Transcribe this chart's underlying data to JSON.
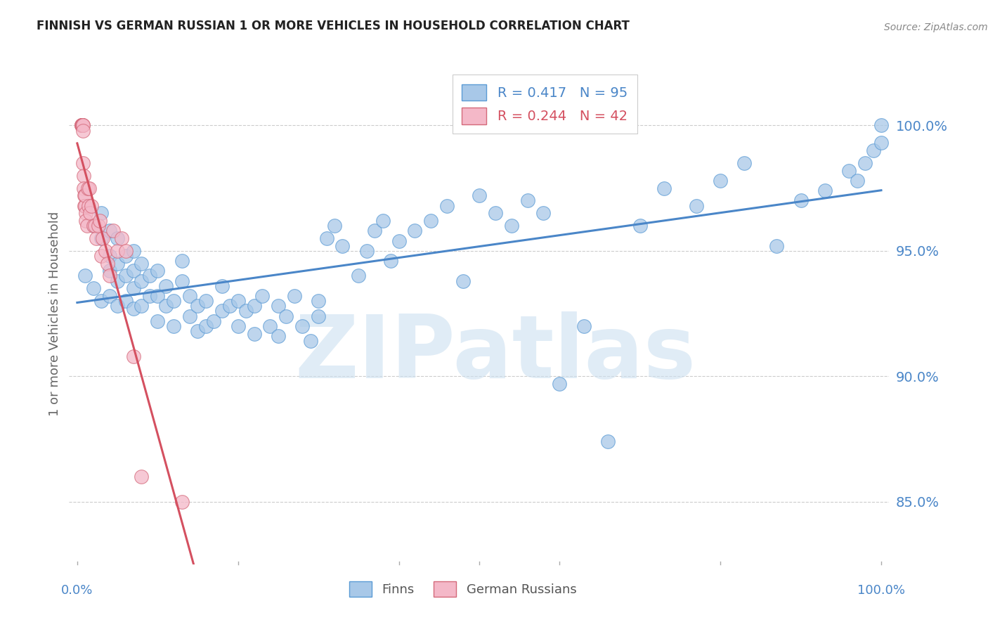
{
  "title": "FINNISH VS GERMAN RUSSIAN 1 OR MORE VEHICLES IN HOUSEHOLD CORRELATION CHART",
  "source": "Source: ZipAtlas.com",
  "ylabel": "1 or more Vehicles in Household",
  "watermark": "ZIPatlas",
  "finns_R": 0.417,
  "finns_N": 95,
  "german_russians_R": 0.244,
  "german_russians_N": 42,
  "finns_color": "#a8c8e8",
  "finns_edge": "#5b9bd5",
  "german_russians_color": "#f4b8c8",
  "german_russians_edge": "#d4697a",
  "trendline_finns_color": "#4a86c8",
  "trendline_german_color": "#d45060",
  "ylim_min": 0.825,
  "ylim_max": 1.025,
  "xlim_min": -0.01,
  "xlim_max": 1.01,
  "yticks": [
    0.85,
    0.9,
    0.95,
    1.0
  ],
  "ytick_labels": [
    "85.0%",
    "90.0%",
    "95.0%",
    "100.0%"
  ],
  "grid_color": "#cccccc",
  "background_color": "#ffffff",
  "finns_x": [
    0.01,
    0.02,
    0.02,
    0.03,
    0.03,
    0.03,
    0.04,
    0.04,
    0.04,
    0.04,
    0.05,
    0.05,
    0.05,
    0.05,
    0.06,
    0.06,
    0.06,
    0.07,
    0.07,
    0.07,
    0.07,
    0.08,
    0.08,
    0.08,
    0.09,
    0.09,
    0.1,
    0.1,
    0.1,
    0.11,
    0.11,
    0.12,
    0.12,
    0.13,
    0.13,
    0.14,
    0.14,
    0.15,
    0.15,
    0.16,
    0.16,
    0.17,
    0.18,
    0.18,
    0.19,
    0.2,
    0.2,
    0.21,
    0.22,
    0.22,
    0.23,
    0.24,
    0.25,
    0.25,
    0.26,
    0.27,
    0.28,
    0.29,
    0.3,
    0.3,
    0.31,
    0.32,
    0.33,
    0.35,
    0.36,
    0.37,
    0.38,
    0.39,
    0.4,
    0.42,
    0.44,
    0.46,
    0.48,
    0.5,
    0.52,
    0.54,
    0.56,
    0.58,
    0.6,
    0.63,
    0.66,
    0.7,
    0.73,
    0.77,
    0.8,
    0.83,
    0.87,
    0.9,
    0.93,
    0.96,
    0.97,
    0.98,
    0.99,
    1.0,
    1.0
  ],
  "finns_y": [
    0.94,
    0.935,
    0.96,
    0.93,
    0.955,
    0.965,
    0.932,
    0.942,
    0.948,
    0.958,
    0.928,
    0.938,
    0.945,
    0.955,
    0.93,
    0.94,
    0.948,
    0.927,
    0.935,
    0.942,
    0.95,
    0.928,
    0.938,
    0.945,
    0.932,
    0.94,
    0.922,
    0.932,
    0.942,
    0.928,
    0.936,
    0.92,
    0.93,
    0.938,
    0.946,
    0.924,
    0.932,
    0.918,
    0.928,
    0.92,
    0.93,
    0.922,
    0.926,
    0.936,
    0.928,
    0.92,
    0.93,
    0.926,
    0.917,
    0.928,
    0.932,
    0.92,
    0.928,
    0.916,
    0.924,
    0.932,
    0.92,
    0.914,
    0.924,
    0.93,
    0.955,
    0.96,
    0.952,
    0.94,
    0.95,
    0.958,
    0.962,
    0.946,
    0.954,
    0.958,
    0.962,
    0.968,
    0.938,
    0.972,
    0.965,
    0.96,
    0.97,
    0.965,
    0.897,
    0.92,
    0.874,
    0.96,
    0.975,
    0.968,
    0.978,
    0.985,
    0.952,
    0.97,
    0.974,
    0.982,
    0.978,
    0.985,
    0.99,
    0.993,
    1.0
  ],
  "german_x": [
    0.005,
    0.005,
    0.005,
    0.006,
    0.006,
    0.006,
    0.006,
    0.007,
    0.007,
    0.007,
    0.007,
    0.008,
    0.008,
    0.009,
    0.009,
    0.01,
    0.01,
    0.011,
    0.011,
    0.012,
    0.013,
    0.014,
    0.015,
    0.016,
    0.018,
    0.02,
    0.022,
    0.024,
    0.026,
    0.028,
    0.03,
    0.032,
    0.035,
    0.038,
    0.04,
    0.045,
    0.05,
    0.055,
    0.06,
    0.07,
    0.08,
    0.13
  ],
  "german_y": [
    1.0,
    1.0,
    1.0,
    1.0,
    1.0,
    1.0,
    1.0,
    1.0,
    1.0,
    0.998,
    0.985,
    0.98,
    0.975,
    0.972,
    0.968,
    0.968,
    0.972,
    0.965,
    0.962,
    0.96,
    0.975,
    0.968,
    0.975,
    0.965,
    0.968,
    0.96,
    0.96,
    0.955,
    0.96,
    0.962,
    0.948,
    0.955,
    0.95,
    0.945,
    0.94,
    0.958,
    0.95,
    0.955,
    0.95,
    0.908,
    0.86,
    0.85
  ]
}
